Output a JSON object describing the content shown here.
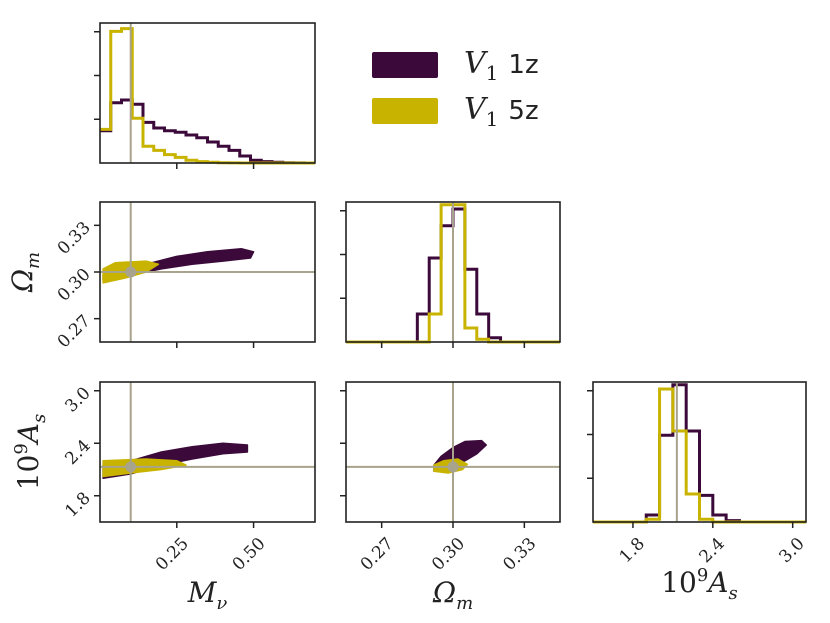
{
  "chart_data": {
    "type": "corner",
    "params": [
      {
        "key": "Mnu",
        "sym": "M",
        "sub": "ν",
        "range": [
          0.0,
          0.7
        ],
        "ticks": [
          0.25,
          0.5
        ],
        "tick_labels": [
          "0.25",
          "0.50"
        ],
        "truth": 0.1
      },
      {
        "key": "Om",
        "sym": "Ω",
        "sub": "m",
        "range": [
          0.255,
          0.345
        ],
        "ticks": [
          0.27,
          0.3,
          0.33
        ],
        "tick_labels": [
          "0.27",
          "0.30",
          "0.33"
        ],
        "truth": 0.3
      },
      {
        "key": "As",
        "pre": "10",
        "sup": "9",
        "sym": "A",
        "sub": "s",
        "range": [
          1.5,
          3.1
        ],
        "ticks": [
          1.8,
          2.4,
          3.0
        ],
        "tick_labels": [
          "1.8",
          "2.4",
          "3.0"
        ],
        "truth": 2.13
      }
    ],
    "series": [
      {
        "name": "V1 1z",
        "color": "#3b0a3a",
        "hist": {
          "Mnu": {
            "edges": [
              0.0,
              0.035,
              0.07,
              0.105,
              0.14,
              0.175,
              0.21,
              0.245,
              0.28,
              0.315,
              0.35,
              0.385,
              0.42,
              0.455,
              0.49,
              0.525,
              0.56,
              0.595,
              0.63,
              0.665,
              0.7
            ],
            "heights": [
              0.23,
              0.43,
              0.45,
              0.42,
              0.29,
              0.25,
              0.23,
              0.22,
              0.2,
              0.18,
              0.15,
              0.12,
              0.09,
              0.05,
              0.02,
              0.01,
              0.005,
              0.002,
              0.001,
              0.0
            ]
          },
          "Om": {
            "edges": [
              0.255,
              0.285,
              0.29,
              0.295,
              0.3,
              0.305,
              0.31,
              0.315,
              0.32,
              0.345
            ],
            "heights": [
              0.0,
              0.2,
              0.6,
              0.83,
              0.95,
              0.52,
              0.2,
              0.03,
              0.0
            ]
          },
          "As": {
            "edges": [
              1.5,
              1.9,
              2.0,
              2.1,
              2.2,
              2.3,
              2.4,
              2.5,
              2.6,
              3.1
            ],
            "heights": [
              0.0,
              0.05,
              0.62,
              0.98,
              0.65,
              0.19,
              0.05,
              0.01,
              0.0
            ]
          }
        },
        "contours": {
          "Mnu-Om": [
            [
              0.01,
              0.295
            ],
            [
              0.1,
              0.298
            ],
            [
              0.2,
              0.302
            ],
            [
              0.3,
              0.305
            ],
            [
              0.4,
              0.307
            ],
            [
              0.49,
              0.309
            ],
            [
              0.5,
              0.313
            ],
            [
              0.46,
              0.315
            ],
            [
              0.35,
              0.313
            ],
            [
              0.25,
              0.31
            ],
            [
              0.15,
              0.305
            ],
            [
              0.05,
              0.301
            ],
            [
              0.01,
              0.298
            ]
          ],
          "Mnu-As": [
            [
              0.01,
              2.0
            ],
            [
              0.1,
              2.05
            ],
            [
              0.2,
              2.15
            ],
            [
              0.3,
              2.22
            ],
            [
              0.4,
              2.28
            ],
            [
              0.48,
              2.3
            ],
            [
              0.48,
              2.38
            ],
            [
              0.4,
              2.4
            ],
            [
              0.3,
              2.36
            ],
            [
              0.2,
              2.3
            ],
            [
              0.1,
              2.2
            ],
            [
              0.01,
              2.15
            ]
          ],
          "Om-As": [
            [
              0.292,
              2.08
            ],
            [
              0.298,
              2.12
            ],
            [
              0.305,
              2.2
            ],
            [
              0.31,
              2.28
            ],
            [
              0.314,
              2.38
            ],
            [
              0.312,
              2.43
            ],
            [
              0.305,
              2.42
            ],
            [
              0.3,
              2.35
            ],
            [
              0.295,
              2.25
            ],
            [
              0.292,
              2.15
            ]
          ]
        }
      },
      {
        "name": "V1 5z",
        "color": "#c8b400",
        "hist": {
          "Mnu": {
            "edges": [
              0.0,
              0.035,
              0.07,
              0.105,
              0.14,
              0.175,
              0.21,
              0.245,
              0.28,
              0.315,
              0.35,
              0.385,
              0.42,
              0.455,
              0.49,
              0.525,
              0.56,
              0.595,
              0.63,
              0.665,
              0.7
            ],
            "heights": [
              0.24,
              0.94,
              0.96,
              0.32,
              0.12,
              0.09,
              0.06,
              0.04,
              0.02,
              0.01,
              0.005,
              0.002,
              0.001,
              0.0,
              0.0,
              0.0,
              0.0,
              0.0,
              0.0,
              0.0
            ]
          },
          "Om": {
            "edges": [
              0.255,
              0.285,
              0.29,
              0.295,
              0.3,
              0.305,
              0.31,
              0.315,
              0.32,
              0.345
            ],
            "heights": [
              0.0,
              0.0,
              0.2,
              0.98,
              0.98,
              0.1,
              0.02,
              0.0,
              0.0
            ]
          },
          "As": {
            "edges": [
              1.5,
              1.9,
              2.0,
              2.1,
              2.2,
              2.3,
              2.4,
              2.5,
              2.6,
              3.1
            ],
            "heights": [
              0.0,
              0.02,
              0.95,
              0.65,
              0.2,
              0.02,
              0.0,
              0.0,
              0.0
            ]
          }
        },
        "contours": {
          "Mnu-Om": [
            [
              0.01,
              0.293
            ],
            [
              0.08,
              0.296
            ],
            [
              0.15,
              0.3
            ],
            [
              0.19,
              0.305
            ],
            [
              0.15,
              0.307
            ],
            [
              0.05,
              0.306
            ],
            [
              0.01,
              0.302
            ]
          ],
          "Mnu-As": [
            [
              0.01,
              2.02
            ],
            [
              0.1,
              2.06
            ],
            [
              0.2,
              2.1
            ],
            [
              0.28,
              2.15
            ],
            [
              0.25,
              2.2
            ],
            [
              0.15,
              2.22
            ],
            [
              0.01,
              2.2
            ]
          ],
          "Om-As": [
            [
              0.292,
              2.08
            ],
            [
              0.298,
              2.06
            ],
            [
              0.304,
              2.1
            ],
            [
              0.306,
              2.16
            ],
            [
              0.302,
              2.22
            ],
            [
              0.296,
              2.2
            ],
            [
              0.292,
              2.15
            ]
          ]
        }
      }
    ],
    "legend": [
      {
        "var": "V",
        "sub": "1",
        "tag": "1z",
        "color": "#3b0a3a"
      },
      {
        "var": "V",
        "sub": "1",
        "tag": "5z",
        "color": "#c8b400"
      }
    ],
    "truth_color": "#a8a38c"
  }
}
